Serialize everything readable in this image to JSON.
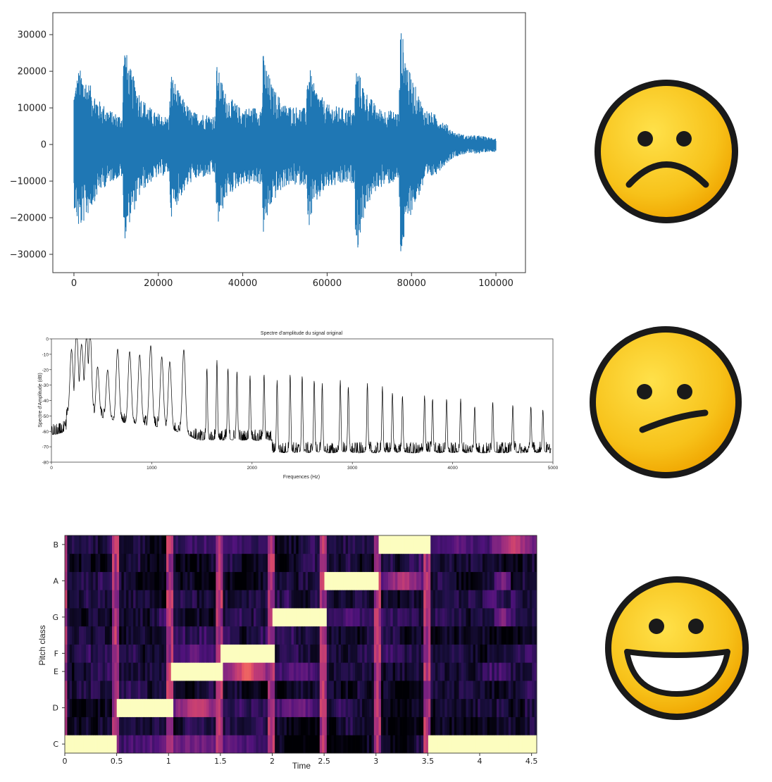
{
  "chart_data": [
    {
      "type": "line",
      "title": "",
      "xlabel": "",
      "ylabel": "",
      "xlim": [
        -5000,
        107000
      ],
      "ylim": [
        -35000,
        36000
      ],
      "xticks": [
        0,
        20000,
        40000,
        60000,
        80000,
        100000
      ],
      "yticks": [
        -30000,
        -20000,
        -10000,
        0,
        10000,
        20000,
        30000
      ],
      "series_color": "#1f77b4",
      "envelope": {
        "x": [
          0,
          1200,
          3000,
          6000,
          9000,
          11500,
          11800,
          13000,
          16000,
          19000,
          22500,
          23000,
          25000,
          28000,
          31000,
          33500,
          33800,
          36000,
          39500,
          44500,
          44800,
          47000,
          50000,
          55000,
          55400,
          57000,
          60000,
          66500,
          66800,
          69000,
          72000,
          77000,
          77400,
          79500,
          83000,
          86000,
          88000,
          90000,
          93000,
          96000,
          98000,
          100000
        ],
        "upper": [
          15000,
          21000,
          18000,
          12000,
          9000,
          8000,
          29000,
          22000,
          13000,
          9000,
          7500,
          20000,
          14000,
          9000,
          8500,
          8000,
          22000,
          14000,
          10000,
          10500,
          25000,
          16000,
          11000,
          10000,
          23000,
          16000,
          11000,
          9500,
          22000,
          15000,
          10000,
          9000,
          32500,
          20000,
          10000,
          8000,
          6000,
          3500,
          2500,
          2500,
          2000,
          2000
        ],
        "lower": [
          -17000,
          -24000,
          -20000,
          -13000,
          -10000,
          -9000,
          -27000,
          -22000,
          -13000,
          -9500,
          -8000,
          -20000,
          -15000,
          -10000,
          -9000,
          -8500,
          -24000,
          -15000,
          -11000,
          -11000,
          -25000,
          -16000,
          -11500,
          -11000,
          -24000,
          -17000,
          -12000,
          -10500,
          -31500,
          -18000,
          -12000,
          -10000,
          -31500,
          -20000,
          -11000,
          -8000,
          -5500,
          -3500,
          -2500,
          -2500,
          -2000,
          -2000
        ]
      }
    },
    {
      "type": "line",
      "title": "Spectre d'amplitude du signal original",
      "xlabel": "Frequences (Hz)",
      "ylabel": "Spectre d'Amplitude (dB)",
      "xlim": [
        0,
        5000
      ],
      "ylim": [
        -80,
        0
      ],
      "xticks": [
        0,
        1000,
        2000,
        3000,
        4000,
        5000
      ],
      "yticks": [
        0,
        -10,
        -20,
        -30,
        -40,
        -50,
        -60,
        -70,
        -80
      ],
      "series_color": "#000000",
      "peaks": [
        {
          "f": 200,
          "db": -13
        },
        {
          "f": 250,
          "db": 0
        },
        {
          "f": 300,
          "db": -10
        },
        {
          "f": 350,
          "db": -4
        },
        {
          "f": 385,
          "db": 0
        },
        {
          "f": 460,
          "db": -22
        },
        {
          "f": 560,
          "db": -24
        },
        {
          "f": 660,
          "db": -10
        },
        {
          "f": 780,
          "db": -12
        },
        {
          "f": 880,
          "db": -14
        },
        {
          "f": 990,
          "db": -8
        },
        {
          "f": 1100,
          "db": -16
        },
        {
          "f": 1180,
          "db": -18
        },
        {
          "f": 1320,
          "db": -10
        },
        {
          "f": 1550,
          "db": -20
        },
        {
          "f": 1650,
          "db": -15
        },
        {
          "f": 1760,
          "db": -20
        },
        {
          "f": 1850,
          "db": -22
        },
        {
          "f": 1980,
          "db": -25
        },
        {
          "f": 2120,
          "db": -24
        },
        {
          "f": 2250,
          "db": -28
        },
        {
          "f": 2380,
          "db": -24
        },
        {
          "f": 2500,
          "db": -25
        },
        {
          "f": 2620,
          "db": -28
        },
        {
          "f": 2700,
          "db": -30
        },
        {
          "f": 2880,
          "db": -28
        },
        {
          "f": 2960,
          "db": -32
        },
        {
          "f": 3150,
          "db": -30
        },
        {
          "f": 3300,
          "db": -32
        },
        {
          "f": 3400,
          "db": -36
        },
        {
          "f": 3500,
          "db": -38
        },
        {
          "f": 3720,
          "db": -38
        },
        {
          "f": 3800,
          "db": -40
        },
        {
          "f": 3940,
          "db": -40
        },
        {
          "f": 4080,
          "db": -40
        },
        {
          "f": 4220,
          "db": -45
        },
        {
          "f": 4400,
          "db": -42
        },
        {
          "f": 4600,
          "db": -44
        },
        {
          "f": 4780,
          "db": -45
        },
        {
          "f": 4900,
          "db": -47
        }
      ]
    },
    {
      "type": "heatmap",
      "title": "",
      "xlabel": "Time",
      "ylabel": "Pitch class",
      "xlim": [
        0,
        4.55
      ],
      "xticks": [
        "0",
        "0.5",
        "1",
        "1.5",
        "2",
        "2.5",
        "3",
        "3.5",
        "4",
        "4.5"
      ],
      "rows": [
        "C",
        "C#",
        "D",
        "D#",
        "E",
        "F",
        "F#",
        "G",
        "G#",
        "A",
        "A#",
        "B"
      ],
      "row_labels": {
        "C": "C",
        "D": "D",
        "E": "E",
        "F": "F",
        "G": "G",
        "A": "A",
        "B": "B"
      },
      "notes": [
        {
          "pitch": "C",
          "t0": 0.0,
          "t1": 0.5
        },
        {
          "pitch": "D",
          "t0": 0.5,
          "t1": 1.05
        },
        {
          "pitch": "E",
          "t0": 1.02,
          "t1": 1.52
        },
        {
          "pitch": "F",
          "t0": 1.5,
          "t1": 2.02
        },
        {
          "pitch": "G",
          "t0": 2.0,
          "t1": 2.52
        },
        {
          "pitch": "A",
          "t0": 2.5,
          "t1": 3.03
        },
        {
          "pitch": "B",
          "t0": 3.02,
          "t1": 3.52
        },
        {
          "pitch": "C",
          "t0": 3.5,
          "t1": 4.55
        }
      ],
      "glow": [
        {
          "pitch": "D",
          "t0": 1.05,
          "t1": 1.5,
          "v": 0.55
        },
        {
          "pitch": "E",
          "t0": 1.52,
          "t1": 2.0,
          "v": 0.6
        },
        {
          "pitch": "A",
          "t0": 3.03,
          "t1": 3.5,
          "v": 0.45
        },
        {
          "pitch": "B",
          "t0": 4.1,
          "t1": 4.55,
          "v": 0.5
        },
        {
          "pitch": "G",
          "t0": 4.15,
          "t1": 4.3,
          "v": 0.35
        },
        {
          "pitch": "A",
          "t0": 4.15,
          "t1": 4.3,
          "v": 0.35
        },
        {
          "pitch": "C",
          "t0": 0.5,
          "t1": 2.0,
          "v": 0.3
        },
        {
          "pitch": "F",
          "t0": 1.0,
          "t1": 1.5,
          "v": 0.25
        },
        {
          "pitch": "G",
          "t0": 2.52,
          "t1": 3.0,
          "v": 0.2
        },
        {
          "pitch": "E",
          "t0": 2.0,
          "t1": 2.5,
          "v": 0.25
        },
        {
          "pitch": "B",
          "t0": 1.0,
          "t1": 2.0,
          "v": 0.2
        },
        {
          "pitch": "B",
          "t0": 3.52,
          "t1": 4.1,
          "v": 0.25
        },
        {
          "pitch": "D",
          "t0": 2.0,
          "t1": 2.5,
          "v": 0.3
        }
      ]
    }
  ],
  "faces": [
    {
      "mood": "sad",
      "icon": "sad-face-icon"
    },
    {
      "mood": "neutral",
      "icon": "neutral-face-icon"
    },
    {
      "mood": "happy",
      "icon": "happy-face-icon"
    }
  ]
}
